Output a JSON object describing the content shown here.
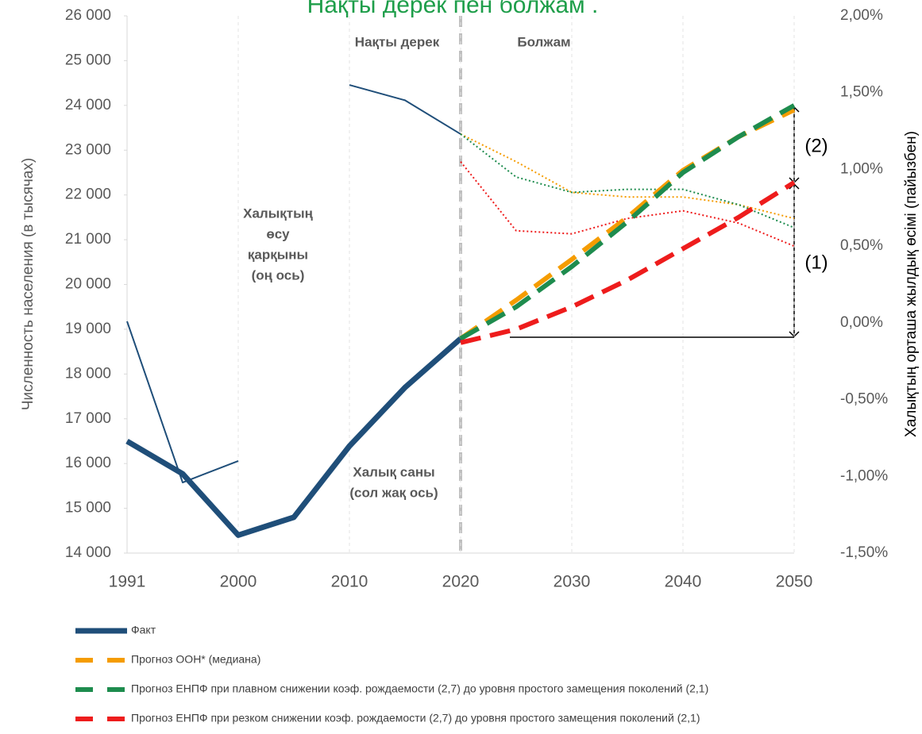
{
  "chart_data": {
    "type": "line",
    "title": "Нақты дерек пен болжам .",
    "ylabel": "Численность населения (в тысячах)",
    "y2label": "Халықтың орташа жылдық өсімі (пайызбен)",
    "annotations": {
      "fact_label": "Нақты дерек",
      "forecast_label": "Болжам",
      "growth_label": [
        "Халықтың",
        "өсу",
        "қарқыны",
        "(оң ось)"
      ],
      "population_label": [
        "Халық саны",
        "(сол жақ ось)"
      ],
      "bracket_1": "(1)",
      "bracket_2": "(2)"
    },
    "categories": [
      "1991",
      null,
      "2000",
      null,
      "2010",
      null,
      "2020",
      null,
      "2030",
      null,
      "2040",
      null,
      "2050"
    ],
    "ylim": [
      14000,
      26000
    ],
    "yticks": [
      {
        "value": 14000,
        "label": "14 000"
      },
      {
        "value": 15000,
        "label": "15 000"
      },
      {
        "value": 16000,
        "label": "16 000"
      },
      {
        "value": 17000,
        "label": "17 000"
      },
      {
        "value": 18000,
        "label": "18 000"
      },
      {
        "value": 19000,
        "label": "19 000"
      },
      {
        "value": 20000,
        "label": "20 000"
      },
      {
        "value": 21000,
        "label": "21 000"
      },
      {
        "value": 22000,
        "label": "22 000"
      },
      {
        "value": 23000,
        "label": "23 000"
      },
      {
        "value": 24000,
        "label": "24 000"
      },
      {
        "value": 25000,
        "label": "25 000"
      },
      {
        "value": 26000,
        "label": "26 000"
      }
    ],
    "y2lim": [
      -1.5,
      2
    ],
    "y2ticks": [
      {
        "value": -1.5,
        "label": "-1,50%"
      },
      {
        "value": -1,
        "label": "-1,00%"
      },
      {
        "value": -0.5,
        "label": "-0,50%"
      },
      {
        "value": 0,
        "label": "0,00%"
      },
      {
        "value": 0.5,
        "label": "0,50%"
      },
      {
        "value": 1,
        "label": "1,00%"
      },
      {
        "value": 1.5,
        "label": "1,50%"
      },
      {
        "value": 2,
        "label": "2,00%"
      }
    ],
    "series": [
      {
        "name": "Факт",
        "color": "#1f4e79",
        "style": "thick",
        "values": [
          16500,
          15770,
          14400,
          14800,
          16390,
          17700,
          18790,
          null,
          null,
          null,
          null,
          null,
          null
        ]
      },
      {
        "name": "Прогноз ООН* (медиана)",
        "color": "#f59c00",
        "style": "dashed",
        "values": [
          null,
          null,
          null,
          null,
          null,
          null,
          18790,
          19650,
          20560,
          21500,
          22550,
          23300,
          23900
        ]
      },
      {
        "name": "Прогноз ЕНПФ при плавном снижении коэф. рождаемости (2,7) до уровня простого замещения поколений (2,1)",
        "color": "#1e8c4e",
        "style": "dashed",
        "values": [
          null,
          null,
          null,
          null,
          null,
          null,
          18790,
          19500,
          20400,
          21400,
          22500,
          23300,
          24000
        ]
      },
      {
        "name": "Прогноз ЕНПФ при резком снижении коэф. рождаемости (2,7) до уровня простого замещения поколений (2,1)",
        "color": "#ee1c1c",
        "style": "dashed",
        "values": [
          null,
          null,
          null,
          null,
          null,
          null,
          18700,
          19000,
          19500,
          20100,
          20800,
          21500,
          22280
        ]
      },
      {
        "color": "#1f4e79",
        "style": "thin",
        "axis": "y2",
        "values": [
          0.01,
          -1.04,
          -0.9,
          null,
          1.55,
          1.45,
          1.23,
          null,
          null,
          null,
          null,
          null,
          null
        ]
      },
      {
        "color": "#f59c00",
        "style": "dotted",
        "axis": "y2",
        "values": [
          null,
          null,
          null,
          null,
          null,
          null,
          1.23,
          1.05,
          0.85,
          0.82,
          0.82,
          0.77,
          0.68
        ]
      },
      {
        "color": "#1e8c4e",
        "style": "dotted",
        "axis": "y2",
        "values": [
          null,
          null,
          null,
          null,
          null,
          null,
          1.23,
          0.95,
          0.85,
          0.87,
          0.87,
          0.77,
          0.62
        ]
      },
      {
        "color": "#ee1c1c",
        "style": "dotted",
        "axis": "y2",
        "values": [
          null,
          null,
          null,
          null,
          null,
          null,
          1.05,
          0.6,
          0.58,
          0.68,
          0.73,
          0.65,
          0.5
        ]
      }
    ]
  }
}
